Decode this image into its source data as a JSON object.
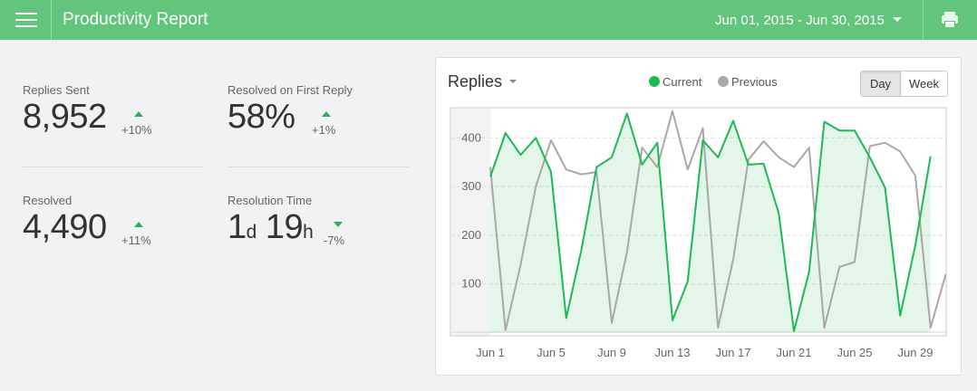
{
  "header": {
    "title": "Productivity Report",
    "date_range": "Jun 01, 2015 - Jun 30, 2015"
  },
  "colors": {
    "topbar": "#63c57c",
    "current": "#1db954",
    "previous": "#a8a8a8",
    "trend": "#2eae5c"
  },
  "icons": {
    "menu": "hamburger-icon",
    "print": "printer-icon",
    "date_dropdown": "caret-down-icon",
    "trend_up": "triangle-up-icon",
    "trend_down": "triangle-down-icon"
  },
  "metrics": {
    "replies_sent": {
      "label": "Replies Sent",
      "value": "8,952",
      "change": "+10%",
      "trend": "up"
    },
    "first_reply": {
      "label": "Resolved on First Reply",
      "value": "58%",
      "change": "+1%",
      "trend": "up"
    },
    "resolved": {
      "label": "Resolved",
      "value": "4,490",
      "change": "+11%",
      "trend": "up"
    },
    "resolution_time": {
      "label": "Resolution Time",
      "days": "1",
      "days_unit": "d",
      "hours": "19",
      "hours_unit": "h",
      "change": "-7%",
      "trend": "down"
    }
  },
  "chart_card": {
    "title": "Replies",
    "toggle": {
      "day_label": "Day",
      "week_label": "Week",
      "active": "day"
    }
  },
  "chart_data": {
    "type": "area",
    "title": "Replies",
    "x_labels": [
      "Jun 1",
      "Jun 5",
      "Jun 9",
      "Jun 13",
      "Jun 17",
      "Jun 21",
      "Jun 25",
      "Jun 29"
    ],
    "x_label_days": [
      1,
      5,
      9,
      13,
      17,
      21,
      25,
      29
    ],
    "y_ticks": [
      100,
      200,
      300,
      400
    ],
    "ylim": [
      0,
      470
    ],
    "xlim": [
      0.5,
      31
    ],
    "grid": true,
    "legend_position": "top-center",
    "series": [
      {
        "name": "Current",
        "style": "area",
        "x": [
          1,
          2,
          3,
          4,
          5,
          6,
          7,
          8,
          9,
          10,
          11,
          12,
          13,
          14,
          15,
          16,
          17,
          18,
          19,
          20,
          21,
          22,
          23,
          24,
          25,
          26,
          27,
          28,
          29,
          30
        ],
        "y": [
          320,
          410,
          365,
          400,
          330,
          30,
          170,
          340,
          360,
          450,
          345,
          390,
          25,
          105,
          395,
          360,
          435,
          345,
          347,
          245,
          3,
          125,
          433,
          415,
          415,
          360,
          298,
          35,
          180,
          362
        ]
      },
      {
        "name": "Previous",
        "style": "line",
        "x": [
          1,
          2,
          3,
          4,
          5,
          6,
          7,
          8,
          9,
          10,
          11,
          12,
          13,
          14,
          15,
          16,
          17,
          18,
          19,
          20,
          21,
          22,
          23,
          24,
          25,
          26,
          27,
          28,
          29,
          30,
          31
        ],
        "y": [
          340,
          5,
          140,
          300,
          395,
          335,
          325,
          330,
          20,
          165,
          380,
          340,
          455,
          335,
          420,
          10,
          150,
          355,
          393,
          360,
          340,
          380,
          10,
          135,
          145,
          383,
          390,
          372,
          322,
          10,
          120
        ]
      }
    ]
  }
}
